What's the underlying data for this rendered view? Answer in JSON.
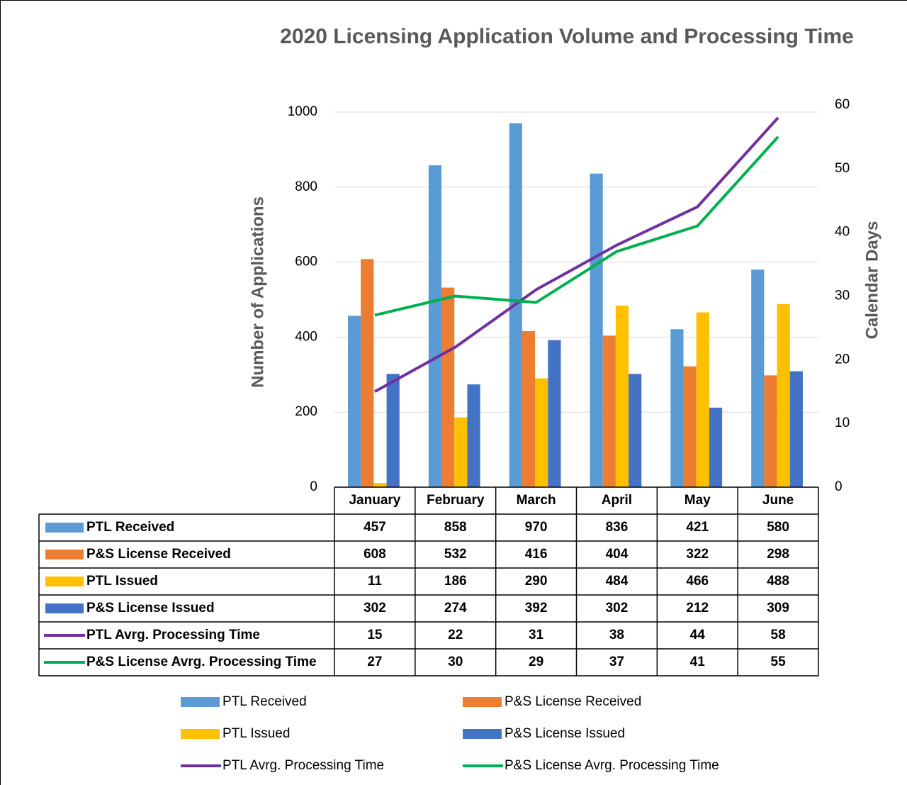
{
  "chart_data": {
    "type": "bar",
    "title": "2020 Licensing Application Volume and Processing Time",
    "y_label": "Number of Applications",
    "y2_label": "Calendar Days",
    "categories": [
      "January",
      "February",
      "March",
      "April",
      "May",
      "June"
    ],
    "ylim": [
      0,
      1000
    ],
    "yticks": [
      0,
      200,
      400,
      600,
      800,
      1000
    ],
    "y2lim": [
      0,
      60
    ],
    "y2ticks": [
      0,
      10,
      20,
      30,
      40,
      50,
      60
    ],
    "grid": true,
    "series": [
      {
        "name": "PTL Received",
        "type": "bar",
        "color": "#5b9bd5",
        "values": [
          457,
          858,
          970,
          836,
          421,
          580
        ]
      },
      {
        "name": "P&S License Received",
        "type": "bar",
        "color": "#ed7d31",
        "values": [
          608,
          532,
          416,
          404,
          322,
          298
        ]
      },
      {
        "name": "PTL Issued",
        "type": "bar",
        "color": "#ffc000",
        "values": [
          11,
          186,
          290,
          484,
          466,
          488
        ]
      },
      {
        "name": "P&S License Issued",
        "type": "bar",
        "color": "#4472c4",
        "values": [
          302,
          274,
          392,
          302,
          212,
          309
        ]
      },
      {
        "name": "PTL Avrg. Processing Time",
        "type": "line",
        "axis": "y2",
        "color": "#7030a0",
        "values": [
          15,
          22,
          31,
          38,
          44,
          58
        ]
      },
      {
        "name": "P&S License Avrg. Processing Time",
        "type": "line",
        "axis": "y2",
        "color": "#00b050",
        "values": [
          27,
          30,
          29,
          37,
          41,
          55
        ]
      }
    ]
  }
}
